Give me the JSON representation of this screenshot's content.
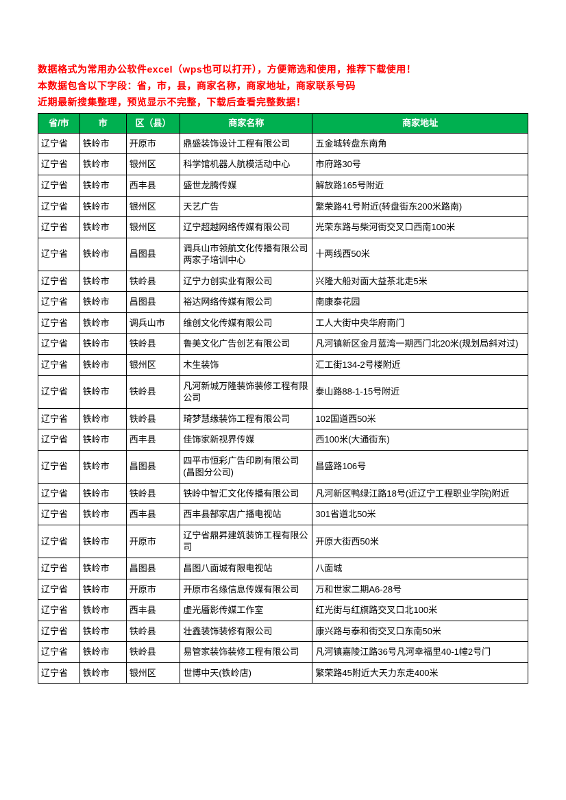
{
  "intro": {
    "line1": "数据格式为常用办公软件excel（wps也可以打开），方便筛选和使用，推荐下载使用！",
    "line2": "本数据包含以下字段：省，市，县，商家名称，商家地址，商家联系号码",
    "line3": "近期最新搜集整理，预览显示不完整，下载后查看完整数据！"
  },
  "table": {
    "header_bg": "#00b050",
    "header_fg": "#ffffff",
    "intro_color": "#ff0000",
    "border_color": "#000000",
    "columns": [
      "省/市",
      "市",
      "区（县）",
      "商家名称",
      "商家地址"
    ],
    "rows": [
      [
        "辽宁省",
        "铁岭市",
        "开原市",
        "鼎盛装饰设计工程有限公司",
        "五金城转盘东南角"
      ],
      [
        "辽宁省",
        "铁岭市",
        "银州区",
        "科学馆机器人航模活动中心",
        "市府路30号"
      ],
      [
        "辽宁省",
        "铁岭市",
        "西丰县",
        "盛世龙腾传媒",
        "解放路165号附近"
      ],
      [
        "辽宁省",
        "铁岭市",
        "银州区",
        "天艺广告",
        "繁荣路41号附近(转盘街东200米路南)"
      ],
      [
        "辽宁省",
        "铁岭市",
        "银州区",
        "辽宁超越网络传媒有限公司",
        "光荣东路与柴河街交叉口西南100米"
      ],
      [
        "辽宁省",
        "铁岭市",
        "昌图县",
        "调兵山市领航文化传播有限公司两家子培训中心",
        "十两线西50米"
      ],
      [
        "辽宁省",
        "铁岭市",
        "铁岭县",
        "辽宁力创实业有限公司",
        "兴隆大船对面大益茶北走5米"
      ],
      [
        "辽宁省",
        "铁岭市",
        "昌图县",
        "裕达网络传媒有限公司",
        "南康泰花园"
      ],
      [
        "辽宁省",
        "铁岭市",
        "调兵山市",
        "维创文化传媒有限公司",
        "工人大街中央华府南门"
      ],
      [
        "辽宁省",
        "铁岭市",
        "铁岭县",
        "鲁美文化广告创艺有限公司",
        "凡河镇新区金月蓝湾一期西门北20米(规划局斜对过)"
      ],
      [
        "辽宁省",
        "铁岭市",
        "银州区",
        "木生装饰",
        "汇工街134-2号楼附近"
      ],
      [
        "辽宁省",
        "铁岭市",
        "铁岭县",
        "凡河新城万隆装饰装修工程有限公司",
        "泰山路88-1-15号附近"
      ],
      [
        "辽宁省",
        "铁岭市",
        "铁岭县",
        "琦梦慧缘装饰工程有限公司",
        "102国道西50米"
      ],
      [
        "辽宁省",
        "铁岭市",
        "西丰县",
        "佳饰家新视界传媒",
        "西100米(大通街东)"
      ],
      [
        "辽宁省",
        "铁岭市",
        "昌图县",
        "四平市恒彩广告印刷有限公司(昌图分公司)",
        "昌盛路106号"
      ],
      [
        "辽宁省",
        "铁岭市",
        "铁岭县",
        "铁岭中智汇文化传播有限公司",
        "凡河新区鸭绿江路18号(近辽宁工程职业学院)附近"
      ],
      [
        "辽宁省",
        "铁岭市",
        "西丰县",
        "西丰县郜家店广播电视站",
        "301省道北50米"
      ],
      [
        "辽宁省",
        "铁岭市",
        "开原市",
        "辽宁省鼎昇建筑装饰工程有限公司",
        "开原大街西50米"
      ],
      [
        "辽宁省",
        "铁岭市",
        "昌图县",
        "昌图八面城有限电视站",
        "八面城"
      ],
      [
        "辽宁省",
        "铁岭市",
        "开原市",
        "开原市名缘信息传媒有限公司",
        "万和世家二期A6-28号"
      ],
      [
        "辽宁省",
        "铁岭市",
        "西丰县",
        "虚光靥影传媒工作室",
        "红光街与红旗路交叉口北100米"
      ],
      [
        "辽宁省",
        "铁岭市",
        "铁岭县",
        "壮鑫装饰装修有限公司",
        "康兴路与泰和街交叉口东南50米"
      ],
      [
        "辽宁省",
        "铁岭市",
        "铁岭县",
        "易管家装饰装修工程有限公司",
        "凡河镇嘉陵江路36号凡河幸福里40-1幢2号门"
      ],
      [
        "辽宁省",
        "铁岭市",
        "银州区",
        "世博中天(铁岭店)",
        "繁荣路45附近大天力东走400米"
      ]
    ]
  }
}
